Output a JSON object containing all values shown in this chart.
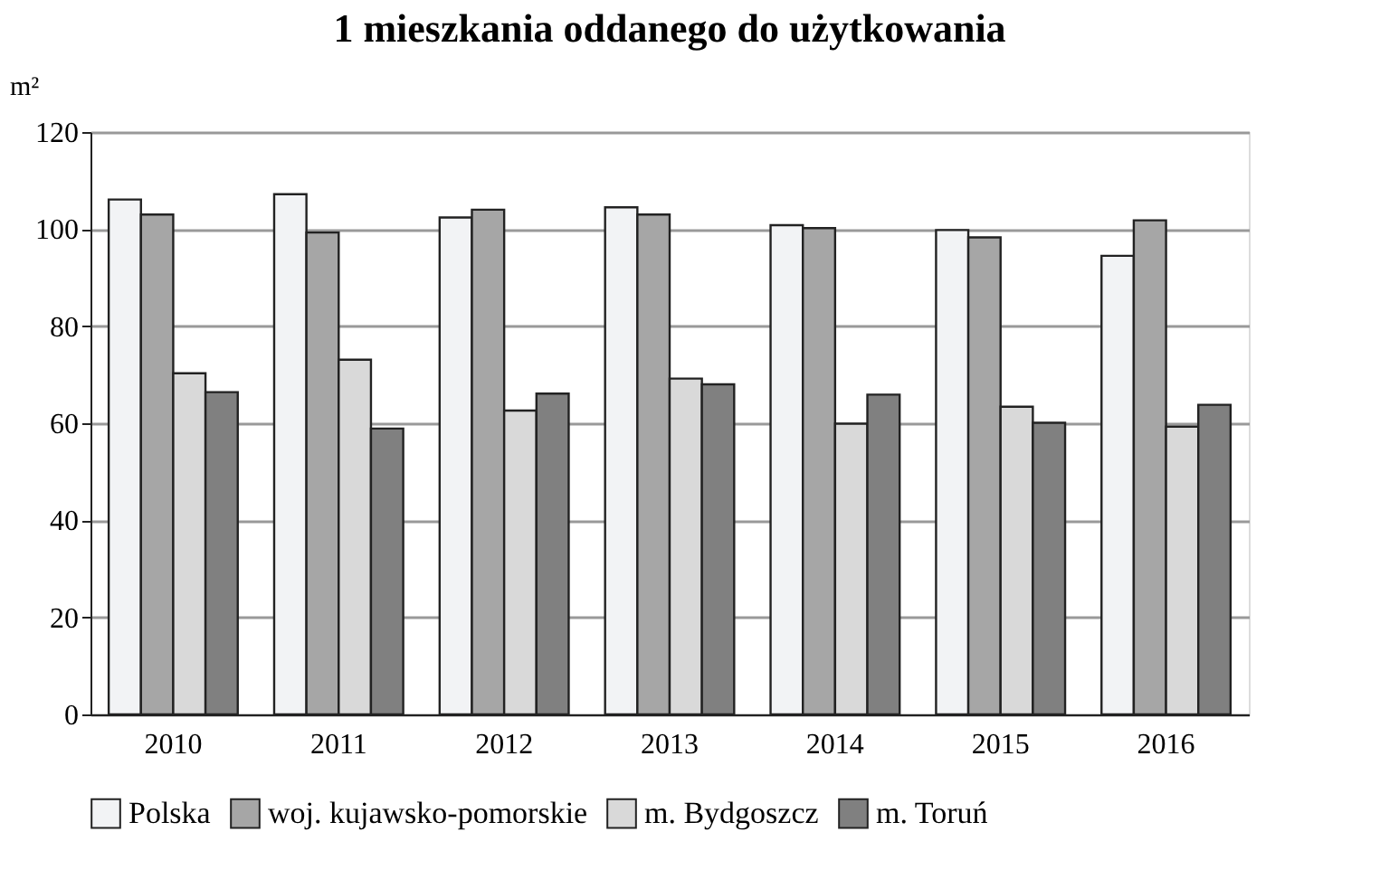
{
  "chart_data": {
    "type": "bar",
    "title": "1 mieszkania oddanego do użytkowania",
    "ylabel": "m²",
    "categories": [
      "2010",
      "2011",
      "2012",
      "2013",
      "2014",
      "2015",
      "2016"
    ],
    "series": [
      {
        "name": "Polska",
        "color": "#f2f3f5",
        "values": [
          106.1,
          107.2,
          102.4,
          104.5,
          100.8,
          99.8,
          94.5
        ]
      },
      {
        "name": "woj. kujawsko-pomorskie",
        "color": "#a6a6a6",
        "values": [
          103.0,
          99.3,
          104.0,
          103.0,
          100.2,
          98.3,
          101.8
        ]
      },
      {
        "name": "m. Bydgoszcz",
        "color": "#d9d9d9",
        "values": [
          70.3,
          73.1,
          62.6,
          69.2,
          59.9,
          63.4,
          59.3
        ]
      },
      {
        "name": "m. Toruń",
        "color": "#808080",
        "values": [
          66.4,
          58.9,
          66.1,
          68.0,
          65.9,
          60.1,
          63.8
        ]
      }
    ],
    "ylim": [
      0,
      120
    ],
    "yticks": [
      0,
      20,
      40,
      60,
      80,
      100,
      120
    ],
    "grid": "y",
    "legend": "bottom"
  }
}
